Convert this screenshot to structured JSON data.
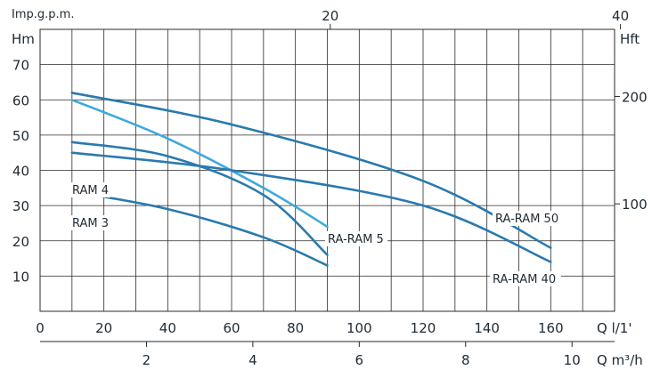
{
  "chart_data": {
    "type": "line",
    "title": "",
    "top_axis": {
      "unit": "Imp.g.p.m.",
      "ticks": [
        "20",
        "40"
      ],
      "tick_values": [
        20,
        40
      ]
    },
    "left_axis": {
      "unit": "Hm",
      "ticks": [
        "10",
        "20",
        "30",
        "40",
        "50",
        "60",
        "70"
      ],
      "tick_values": [
        10,
        20,
        30,
        40,
        50,
        60,
        70
      ],
      "range": [
        0,
        80
      ]
    },
    "right_axis": {
      "unit": "Hft",
      "ticks": [
        "100",
        "200"
      ],
      "tick_values": [
        100,
        200
      ]
    },
    "bottom_axis_lmin": {
      "unit": "Q l/1'",
      "ticks": [
        "0",
        "20",
        "40",
        "60",
        "80",
        "100",
        "120",
        "140",
        "160"
      ],
      "tick_values": [
        0,
        20,
        40,
        60,
        80,
        100,
        120,
        140,
        160
      ],
      "range": [
        0,
        180
      ]
    },
    "bottom_axis_m3h": {
      "unit": "Q m³/h",
      "ticks": [
        "2",
        "4",
        "6",
        "8",
        "10"
      ],
      "tick_values": [
        2,
        4,
        6,
        8,
        10
      ]
    },
    "grid": true,
    "series": [
      {
        "name": "RAM 4",
        "color": "#2a7aae",
        "x": [
          10,
          40,
          70,
          90
        ],
        "y": [
          48,
          44,
          33,
          16
        ],
        "label_side": "left"
      },
      {
        "name": "RAM 3",
        "color": "#2a7aae",
        "x": [
          10,
          40,
          70,
          90
        ],
        "y": [
          34,
          29,
          21,
          13
        ],
        "label_side": "left"
      },
      {
        "name": "RA-RAM 5",
        "color": "#3fa9dd",
        "x": [
          10,
          40,
          70,
          90
        ],
        "y": [
          60,
          49,
          35,
          24
        ],
        "label_side": "right"
      },
      {
        "name": "RA-RAM 50",
        "color": "#2a7aae",
        "x": [
          10,
          60,
          120,
          160
        ],
        "y": [
          62,
          53,
          37,
          18
        ],
        "label_side": "left"
      },
      {
        "name": "RA-RAM 40",
        "color": "#2a7aae",
        "x": [
          10,
          60,
          120,
          160
        ],
        "y": [
          45,
          40,
          30,
          14
        ],
        "label_side": "right"
      }
    ]
  }
}
